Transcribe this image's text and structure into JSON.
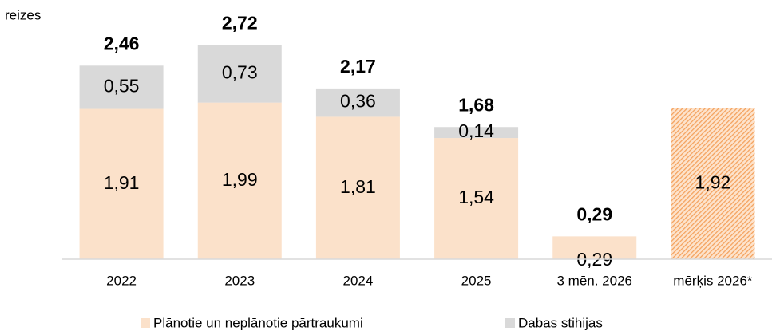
{
  "chart_data": {
    "type": "stacked_bar",
    "y_label": "reizes",
    "categories": [
      "2022",
      "2023",
      "2024",
      "2025",
      "3 mēn. 2026",
      "mērķis 2026*"
    ],
    "series": [
      {
        "name": "Plānotie un neplānotie pārtraukumi",
        "color": "#fbe1ca",
        "hatch_color": "#f4a15c",
        "values": [
          1.91,
          1.99,
          1.81,
          1.54,
          0.29,
          1.92
        ],
        "value_labels": [
          "1,91",
          "1,99",
          "1,81",
          "1,54",
          "0,29",
          "1,92"
        ],
        "hatched": [
          false,
          false,
          false,
          false,
          false,
          true
        ]
      },
      {
        "name": "Dabas stihijas",
        "color": "#d9d9d9",
        "values": [
          0.55,
          0.73,
          0.36,
          0.14,
          null,
          null
        ],
        "value_labels": [
          "0,55",
          "0,73",
          "0,36",
          "0,14",
          null,
          null
        ]
      }
    ],
    "totals": [
      2.46,
      2.72,
      2.17,
      1.68,
      0.29,
      null
    ],
    "total_labels": [
      "2,46",
      "2,72",
      "2,17",
      "1,68",
      "0,29",
      null
    ],
    "ylim": [
      0,
      3.0
    ],
    "legend": "bottom"
  }
}
